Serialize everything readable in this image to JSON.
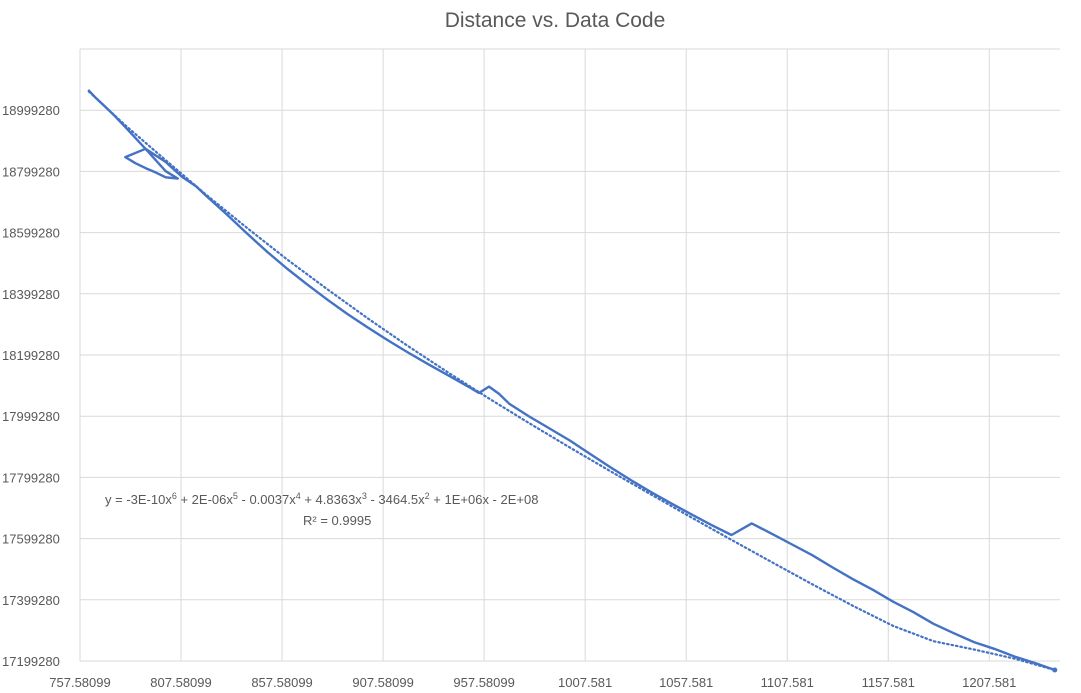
{
  "chart_data": {
    "type": "scatter",
    "title": "Distance vs. Data Code",
    "xlabel": "",
    "ylabel": "",
    "xlim": [
      757.58099,
      1242.581
    ],
    "ylim": [
      17199280,
      19199280
    ],
    "x_ticks": [
      757.58099,
      807.58099,
      857.58099,
      907.58099,
      957.58099,
      1007.581,
      1057.581,
      1107.581,
      1157.581,
      1207.581
    ],
    "x_tick_labels": [
      "757.58099",
      "807.58099",
      "857.58099",
      "907.58099",
      "957.58099",
      "1007.581",
      "1057.581",
      "1107.581",
      "1157.581",
      "1207.581"
    ],
    "y_ticks": [
      17199280,
      17399280,
      17599280,
      17799280,
      17999280,
      18199280,
      18399280,
      18599280,
      18799280,
      18999280
    ],
    "y_tick_labels": [
      "17199280",
      "17399280",
      "17599280",
      "17799280",
      "17999280",
      "18199280",
      "18399280",
      "18599280",
      "18799280",
      "18999280"
    ],
    "grid": true,
    "series": [
      {
        "color": "#4472C4",
        "style": "solid",
        "x": [
          762,
          765,
          770,
          775,
          780,
          790,
          800,
          806,
          800,
          795,
          790,
          785,
          780,
          790,
          800,
          808,
          815,
          820,
          830,
          840,
          850,
          860,
          870,
          880,
          890,
          900,
          910,
          920,
          930,
          940,
          950,
          955,
          960,
          965,
          970,
          980,
          990,
          1000,
          1010,
          1020,
          1030,
          1040,
          1050,
          1060,
          1070,
          1080,
          1090,
          1100,
          1110,
          1120,
          1130,
          1140,
          1150,
          1160,
          1170,
          1180,
          1190,
          1200,
          1210,
          1220,
          1230,
          1240
        ],
        "y": [
          19063000,
          19042000,
          19011000,
          18979000,
          18944000,
          18873000,
          18800000,
          18776000,
          18780000,
          18796000,
          18810000,
          18826000,
          18846000,
          18873000,
          18830000,
          18782000,
          18751000,
          18720000,
          18660000,
          18598000,
          18538000,
          18482000,
          18430000,
          18380000,
          18333000,
          18289000,
          18247000,
          18207000,
          18169000,
          18132000,
          18095000,
          18075000,
          18096000,
          18072000,
          18040000,
          17998000,
          17959000,
          17920000,
          17876000,
          17833000,
          17791000,
          17752000,
          17715000,
          17679000,
          17644000,
          17611000,
          17649000,
          17615000,
          17580000,
          17545000,
          17505000,
          17467000,
          17432000,
          17393000,
          17359000,
          17321000,
          17290000,
          17261000,
          17239000,
          17214000,
          17193000,
          17170000
        ]
      },
      {
        "color": "#4472C4",
        "style": "dotted",
        "trendline": "polynomial, order 6",
        "x": [
          762,
          780,
          800,
          820,
          840,
          860,
          880,
          900,
          920,
          940,
          960,
          980,
          1000,
          1020,
          1040,
          1060,
          1080,
          1100,
          1120,
          1140,
          1160,
          1180,
          1200,
          1220,
          1240
        ],
        "y": [
          19060000,
          18950000,
          18836000,
          18723000,
          18616000,
          18512000,
          18414000,
          18319000,
          18228000,
          18141000,
          18057000,
          17976000,
          17897000,
          17820000,
          17744000,
          17669000,
          17595000,
          17522000,
          17450000,
          17380000,
          17314000,
          17264000,
          17237000,
          17207000,
          17170000
        ]
      }
    ],
    "annotations": [
      {
        "line1_parts": [
          "y = -3E-10x",
          "6",
          " + 2E-06x",
          "5",
          " - 0.0037x",
          "4",
          " + 4.8363x",
          "3",
          " - 3464.5x",
          "2",
          " + 1E+06x - 2E+08"
        ],
        "line2": "R² = 0.9995"
      }
    ]
  }
}
